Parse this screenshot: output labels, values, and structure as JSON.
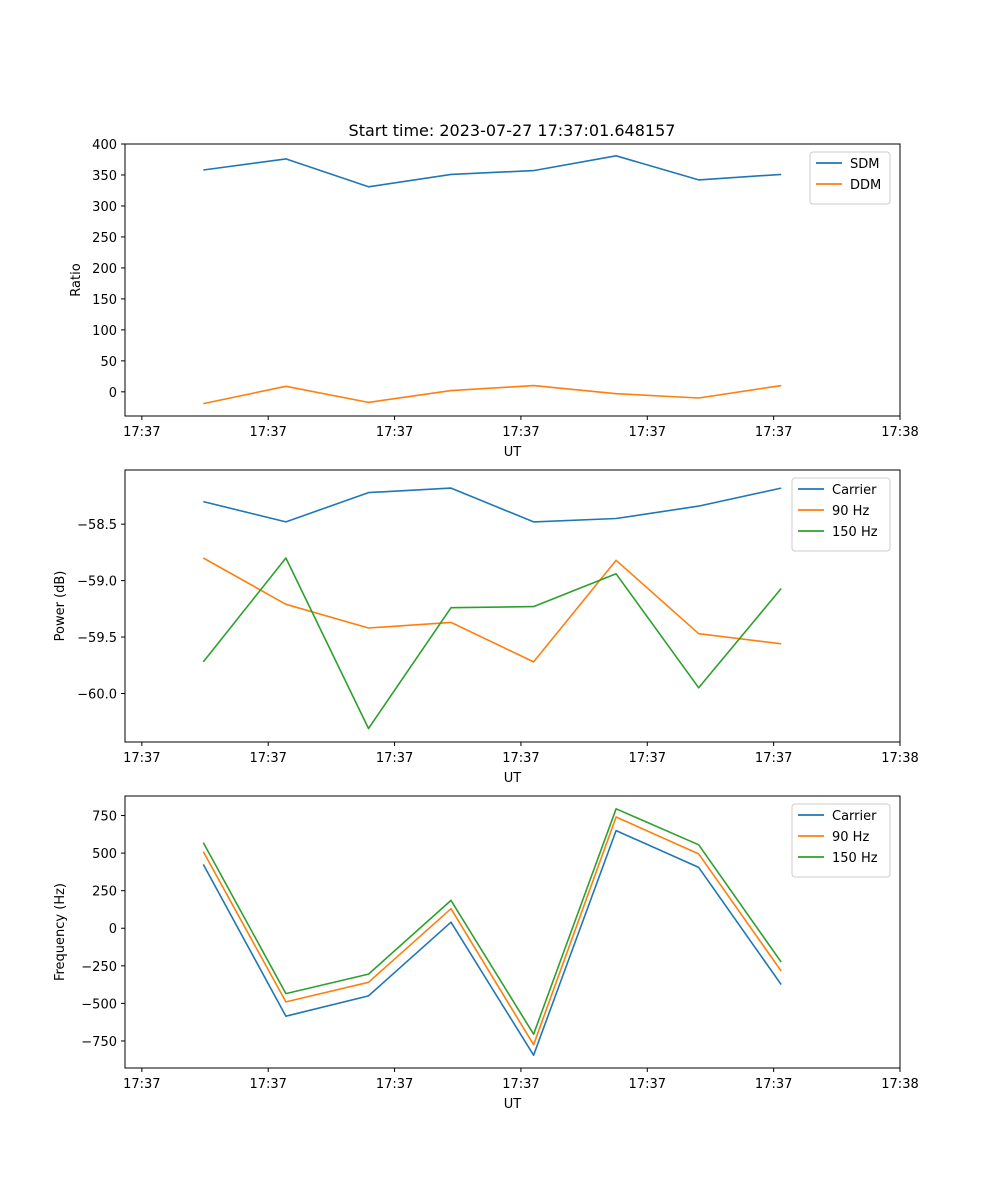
{
  "figure": {
    "title": "Start time: 2023-07-27 17:37:01.648157"
  },
  "chart_data": [
    {
      "type": "line",
      "title": "Start time: 2023-07-27 17:37:01.648157",
      "xlabel": "UT",
      "ylabel": "Ratio",
      "xlim": [
        -0.2,
        9.0
      ],
      "ylim": [
        -39,
        400
      ],
      "x_ticks": [
        0,
        1.5,
        3,
        4.5,
        6,
        7.5,
        9
      ],
      "x_tick_labels": [
        "17:37",
        "17:37",
        "17:37",
        "17:37",
        "17:37",
        "17:37",
        "17:38"
      ],
      "y_ticks": [
        0,
        50,
        100,
        150,
        200,
        250,
        300,
        350,
        400
      ],
      "y_tick_labels": [
        "0",
        "50",
        "100",
        "150",
        "200",
        "250",
        "300",
        "350",
        "400"
      ],
      "legend_position": "top-right",
      "x": [
        0.73,
        1.71,
        2.69,
        3.67,
        4.65,
        5.63,
        6.61,
        7.59
      ],
      "series": [
        {
          "name": "SDM",
          "color": "#1f77b4",
          "values": [
            358,
            376,
            331,
            351,
            357,
            381,
            342,
            351
          ]
        },
        {
          "name": "DDM",
          "color": "#ff7f0e",
          "values": [
            -19,
            9,
            -17,
            2,
            10,
            -3,
            -10,
            10
          ]
        }
      ]
    },
    {
      "type": "line",
      "title": "",
      "xlabel": "UT",
      "ylabel": "Power (dB)",
      "xlim": [
        -0.2,
        9.0
      ],
      "ylim": [
        -60.43,
        -58.02
      ],
      "x_ticks": [
        0,
        1.5,
        3,
        4.5,
        6,
        7.5,
        9
      ],
      "x_tick_labels": [
        "17:37",
        "17:37",
        "17:37",
        "17:37",
        "17:37",
        "17:37",
        "17:38"
      ],
      "y_ticks": [
        -58.5,
        -59.0,
        -59.5,
        -60.0
      ],
      "y_tick_labels": [
        "−58.5",
        "−59.0",
        "−59.5",
        "−60.0"
      ],
      "legend_position": "top-right",
      "x": [
        0.73,
        1.71,
        2.69,
        3.67,
        4.65,
        5.63,
        6.61,
        7.59
      ],
      "series": [
        {
          "name": "Carrier",
          "color": "#1f77b4",
          "values": [
            -58.3,
            -58.48,
            -58.22,
            -58.18,
            -58.48,
            -58.45,
            -58.34,
            -58.18
          ]
        },
        {
          "name": "90 Hz",
          "color": "#ff7f0e",
          "values": [
            -58.8,
            -59.21,
            -59.42,
            -59.37,
            -59.72,
            -58.82,
            -59.47,
            -59.56
          ]
        },
        {
          "name": "150 Hz",
          "color": "#2ca02c",
          "values": [
            -59.72,
            -58.8,
            -60.31,
            -59.24,
            -59.23,
            -58.94,
            -59.95,
            -59.07
          ]
        }
      ]
    },
    {
      "type": "line",
      "title": "",
      "xlabel": "UT",
      "ylabel": "Frequency (Hz)",
      "xlim": [
        -0.2,
        9.0
      ],
      "ylim": [
        -930,
        880
      ],
      "x_ticks": [
        0,
        1.5,
        3,
        4.5,
        6,
        7.5,
        9
      ],
      "x_tick_labels": [
        "17:37",
        "17:37",
        "17:37",
        "17:37",
        "17:37",
        "17:37",
        "17:38"
      ],
      "y_ticks": [
        -750,
        -500,
        -250,
        0,
        250,
        500,
        750
      ],
      "y_tick_labels": [
        "−750",
        "−500",
        "−250",
        "0",
        "250",
        "500",
        "750"
      ],
      "legend_position": "top-right",
      "x": [
        0.73,
        1.71,
        2.69,
        3.67,
        4.65,
        5.63,
        6.61,
        7.59
      ],
      "series": [
        {
          "name": "Carrier",
          "color": "#1f77b4",
          "values": [
            425,
            -585,
            -450,
            40,
            -845,
            650,
            405,
            -375
          ]
        },
        {
          "name": "90 Hz",
          "color": "#ff7f0e",
          "values": [
            510,
            -490,
            -360,
            130,
            -775,
            740,
            495,
            -285
          ]
        },
        {
          "name": "150 Hz",
          "color": "#2ca02c",
          "values": [
            570,
            -435,
            -305,
            185,
            -705,
            795,
            555,
            -225
          ]
        }
      ]
    }
  ]
}
